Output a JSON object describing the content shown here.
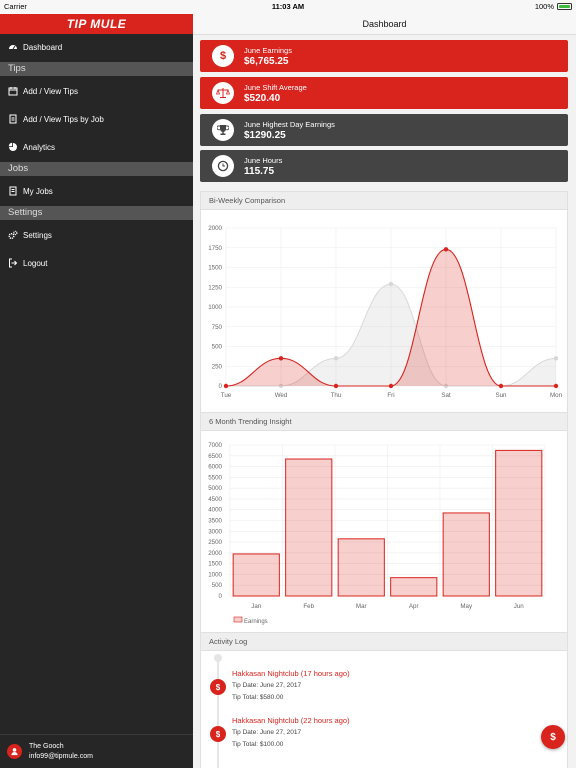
{
  "status_bar": {
    "carrier": "Carrier",
    "time": "11:03 AM",
    "battery": "100%",
    "battery_level": 1.0
  },
  "brand": "TIP MULE",
  "sidebar": {
    "items": [
      {
        "label": "Dashboard",
        "icon": "dashboard-icon"
      },
      {
        "label": "Add / View Tips",
        "icon": "calendar-icon"
      },
      {
        "label": "Add / View Tips by Job",
        "icon": "document-icon"
      },
      {
        "label": "Analytics",
        "icon": "pie-chart-icon"
      },
      {
        "label": "My Jobs",
        "icon": "briefcase-icon"
      },
      {
        "label": "Settings",
        "icon": "gears-icon"
      },
      {
        "label": "Logout",
        "icon": "logout-icon"
      }
    ],
    "sections": {
      "tips": "Tips",
      "jobs": "Jobs",
      "settings": "Settings"
    },
    "user": {
      "name": "The Gooch",
      "email": "info99@tipmule.com"
    }
  },
  "header": {
    "title": "Dashboard"
  },
  "stats": [
    {
      "label": "June Earnings",
      "value": "$6,765.25",
      "icon": "dollar-icon",
      "color": "#d9231d"
    },
    {
      "label": "June Shift Average",
      "value": "$520.40",
      "icon": "scale-icon",
      "color": "#d9231d"
    },
    {
      "label": "June Highest Day Earnings",
      "value": "$1290.25",
      "icon": "trophy-icon",
      "color": "#444444"
    },
    {
      "label": "June Hours",
      "value": "115.75",
      "icon": "clock-icon",
      "color": "#444444"
    }
  ],
  "panels": {
    "biweekly": "Bi-Weekly Comparison",
    "trending": "6 Month Trending Insight",
    "activity": "Activity Log"
  },
  "chart_data": [
    {
      "type": "area",
      "categories": [
        "Tue",
        "Wed",
        "Thu",
        "Fri",
        "Sat",
        "Sun",
        "Mon"
      ],
      "ylim": [
        0,
        2000
      ],
      "yticks": [
        0,
        250,
        500,
        750,
        1000,
        1250,
        1500,
        1750,
        2000
      ],
      "grid": true,
      "series": [
        {
          "values": [
            0,
            350,
            0,
            0,
            1730,
            0,
            0
          ],
          "color": "#d9231d"
        },
        {
          "values": [
            0,
            0,
            350,
            1290,
            0,
            0,
            350
          ],
          "color": "#cccccc"
        }
      ]
    },
    {
      "type": "bar",
      "categories": [
        "Jan",
        "Feb",
        "Mar",
        "Apr",
        "May",
        "Jun"
      ],
      "values": [
        1950,
        6350,
        2650,
        850,
        3850,
        6750
      ],
      "ylim": [
        0,
        7000
      ],
      "yticks": [
        0,
        500,
        1000,
        1500,
        2000,
        2500,
        3000,
        3500,
        4000,
        4500,
        5000,
        5500,
        6000,
        6500,
        7000
      ],
      "grid": true,
      "legend": [
        "Earnings"
      ],
      "color": "#d9231d"
    }
  ],
  "activity": [
    {
      "title": "Hakkasan Nightclub (17 hours ago)",
      "date": "Tip Date: June 27, 2017",
      "total": "Tip Total: $580.00"
    },
    {
      "title": "Hakkasan Nightclub (22 hours ago)",
      "date": "Tip Date: June 27, 2017",
      "total": "Tip Total: $100.00"
    }
  ],
  "fab": {
    "label": "$"
  }
}
